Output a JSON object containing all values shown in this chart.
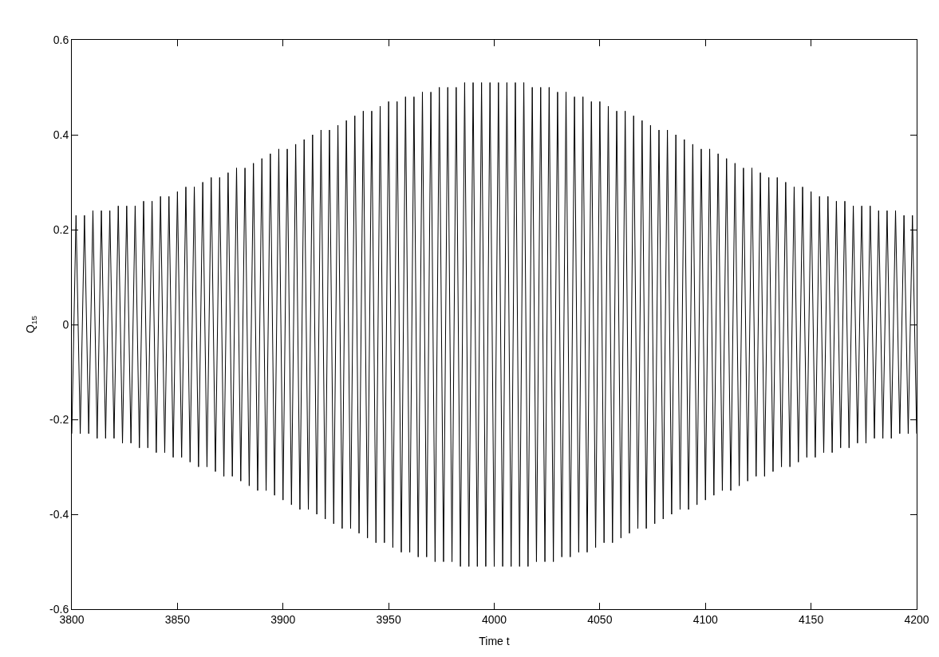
{
  "chart_data": {
    "type": "line",
    "xlabel": "Time t",
    "ylabel": "Q$_{15}$",
    "xlim": [
      3800,
      4200
    ],
    "xticks": [
      3800,
      3850,
      3900,
      3950,
      4000,
      4050,
      4100,
      4150,
      4200
    ],
    "ylim": [
      -0.6,
      0.6
    ],
    "yticks": [
      -0.6,
      -0.4,
      -0.2,
      0,
      0.2,
      0.4,
      0.6
    ],
    "marker": "none",
    "line_style": "solid",
    "x": [
      3800,
      3802,
      3804,
      3806,
      3808,
      3810,
      3812,
      3814,
      3816,
      3818,
      3820,
      3822,
      3824,
      3826,
      3828,
      3830,
      3832,
      3834,
      3836,
      3838,
      3840,
      3842,
      3844,
      3846,
      3848,
      3850,
      3852,
      3854,
      3856,
      3858,
      3860,
      3862,
      3864,
      3866,
      3868,
      3870,
      3872,
      3874,
      3876,
      3878,
      3880,
      3882,
      3884,
      3886,
      3888,
      3890,
      3892,
      3894,
      3896,
      3898,
      3900,
      3902,
      3904,
      3906,
      3908,
      3910,
      3912,
      3914,
      3916,
      3918,
      3920,
      3922,
      3924,
      3926,
      3928,
      3930,
      3932,
      3934,
      3936,
      3938,
      3940,
      3942,
      3944,
      3946,
      3948,
      3950,
      3952,
      3954,
      3956,
      3958,
      3960,
      3962,
      3964,
      3966,
      3968,
      3970,
      3972,
      3974,
      3976,
      3978,
      3980,
      3982,
      3984,
      3986,
      3988,
      3990,
      3992,
      3994,
      3996,
      3998,
      4000,
      4002,
      4004,
      4006,
      4008,
      4010,
      4012,
      4014,
      4016,
      4018,
      4020,
      4022,
      4024,
      4026,
      4028,
      4030,
      4032,
      4034,
      4036,
      4038,
      4040,
      4042,
      4044,
      4046,
      4048,
      4050,
      4052,
      4054,
      4056,
      4058,
      4060,
      4062,
      4064,
      4066,
      4068,
      4070,
      4072,
      4074,
      4076,
      4078,
      4080,
      4082,
      4084,
      4086,
      4088,
      4090,
      4092,
      4094,
      4096,
      4098,
      4100,
      4102,
      4104,
      4106,
      4108,
      4110,
      4112,
      4114,
      4116,
      4118,
      4120,
      4122,
      4124,
      4126,
      4128,
      4130,
      4132,
      4134,
      4136,
      4138,
      4140,
      4142,
      4144,
      4146,
      4148,
      4150,
      4152,
      4154,
      4156,
      4158,
      4160,
      4162,
      4164,
      4166,
      4168,
      4170,
      4172,
      4174,
      4176,
      4178,
      4180,
      4182,
      4184,
      4186,
      4188,
      4190,
      4192,
      4194,
      4196,
      4198,
      4200
    ],
    "series": [
      {
        "color": "#000000",
        "values": [
          -0.23,
          0.23,
          -0.23,
          0.23,
          -0.23,
          0.24,
          -0.24,
          0.24,
          -0.24,
          0.24,
          -0.24,
          0.25,
          -0.25,
          0.25,
          -0.25,
          0.25,
          -0.26,
          0.26,
          -0.26,
          0.26,
          -0.27,
          0.27,
          -0.27,
          0.27,
          -0.28,
          0.28,
          -0.28,
          0.29,
          -0.29,
          0.29,
          -0.3,
          0.3,
          -0.3,
          0.31,
          -0.31,
          0.31,
          -0.32,
          0.32,
          -0.32,
          0.33,
          -0.33,
          0.33,
          -0.34,
          0.34,
          -0.35,
          0.35,
          -0.35,
          0.36,
          -0.36,
          0.37,
          -0.37,
          0.37,
          -0.38,
          0.38,
          -0.39,
          0.39,
          -0.39,
          0.4,
          -0.4,
          0.41,
          -0.41,
          0.41,
          -0.42,
          0.42,
          -0.43,
          0.43,
          -0.43,
          0.44,
          -0.44,
          0.45,
          -0.45,
          0.45,
          -0.46,
          0.46,
          -0.46,
          0.47,
          -0.47,
          0.47,
          -0.48,
          0.48,
          -0.48,
          0.48,
          -0.49,
          0.49,
          -0.49,
          0.49,
          -0.5,
          0.5,
          -0.5,
          0.5,
          -0.5,
          0.5,
          -0.51,
          0.51,
          -0.51,
          0.51,
          -0.51,
          0.51,
          -0.51,
          0.51,
          -0.51,
          0.51,
          -0.51,
          0.51,
          -0.51,
          0.51,
          -0.51,
          0.51,
          -0.51,
          0.5,
          -0.5,
          0.5,
          -0.5,
          0.5,
          -0.5,
          0.49,
          -0.49,
          0.49,
          -0.49,
          0.48,
          -0.48,
          0.48,
          -0.48,
          0.47,
          -0.47,
          0.47,
          -0.46,
          0.46,
          -0.46,
          0.45,
          -0.45,
          0.45,
          -0.44,
          0.44,
          -0.43,
          0.43,
          -0.43,
          0.42,
          -0.42,
          0.41,
          -0.41,
          0.41,
          -0.4,
          0.4,
          -0.39,
          0.39,
          -0.39,
          0.38,
          -0.38,
          0.37,
          -0.37,
          0.37,
          -0.36,
          0.36,
          -0.35,
          0.35,
          -0.35,
          0.34,
          -0.34,
          0.33,
          -0.33,
          0.33,
          -0.32,
          0.32,
          -0.32,
          0.31,
          -0.31,
          0.31,
          -0.3,
          0.3,
          -0.3,
          0.29,
          -0.29,
          0.29,
          -0.28,
          0.28,
          -0.28,
          0.27,
          -0.27,
          0.27,
          -0.27,
          0.26,
          -0.26,
          0.26,
          -0.26,
          0.25,
          -0.25,
          0.25,
          -0.25,
          0.25,
          -0.24,
          0.24,
          -0.24,
          0.24,
          -0.24,
          0.24,
          -0.23,
          0.23,
          -0.23,
          0.23,
          -0.23
        ]
      }
    ]
  }
}
